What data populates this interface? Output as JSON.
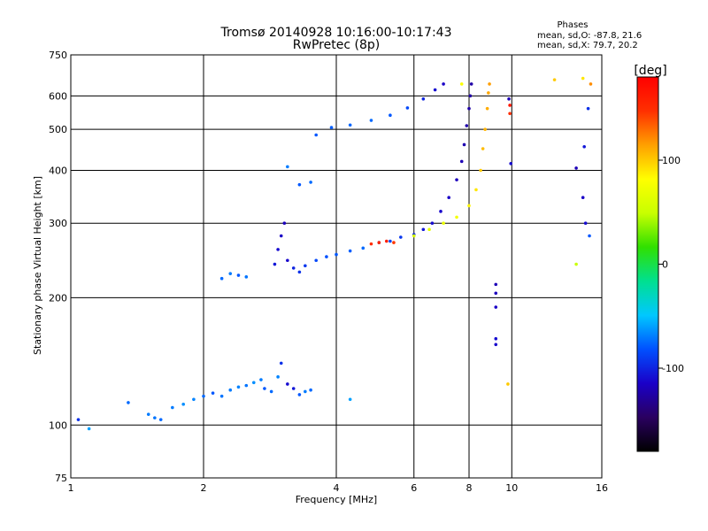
{
  "chart_data": {
    "type": "scatter",
    "title": "Tromsø 20140928 10:16:00-10:17:43",
    "subtitle": "RwPretec (8p)",
    "xlabel": "Frequency [MHz]",
    "ylabel": "Stationary phase Virtual Height [km]",
    "x_scale": "log",
    "y_scale": "log",
    "xlim": [
      1,
      16
    ],
    "ylim": [
      75,
      750
    ],
    "x_ticks": [
      1,
      2,
      4,
      6,
      8,
      10,
      16
    ],
    "y_ticks": [
      75,
      100,
      200,
      300,
      400,
      500,
      600,
      750
    ],
    "grid": true,
    "legend": {
      "title": "Phases",
      "line1": "mean, sd,O: -87.8, 21.6",
      "line2": "mean, sd,X:  79.7, 20.2"
    },
    "colorbar": {
      "label": "[deg]",
      "range": [
        -180,
        180
      ],
      "ticks": [
        100,
        0,
        -100
      ],
      "colors": [
        "#000000",
        "#2a0060",
        "#1a00c8",
        "#0050ff",
        "#00c8ff",
        "#00e090",
        "#30e000",
        "#c8ff00",
        "#ffff00",
        "#ffa000",
        "#ff3000",
        "#ff0000"
      ]
    },
    "series": [
      {
        "values": [
          [
            1.04,
            103,
            -95
          ],
          [
            1.1,
            98,
            -60
          ],
          [
            1.35,
            113,
            -75
          ],
          [
            1.5,
            106,
            -70
          ],
          [
            1.55,
            104,
            -72
          ],
          [
            1.6,
            103,
            -75
          ],
          [
            1.7,
            110,
            -70
          ],
          [
            1.8,
            112,
            -65
          ],
          [
            1.9,
            115,
            -68
          ],
          [
            2.0,
            117,
            -75
          ],
          [
            2.1,
            119,
            -80
          ],
          [
            2.2,
            117,
            -72
          ],
          [
            2.3,
            121,
            -70
          ],
          [
            2.4,
            123,
            -68
          ],
          [
            2.5,
            124,
            -72
          ],
          [
            2.6,
            126,
            -65
          ],
          [
            2.7,
            128,
            -70
          ],
          [
            2.75,
            122,
            -80
          ],
          [
            2.85,
            120,
            -75
          ],
          [
            2.95,
            130,
            -68
          ],
          [
            3.0,
            140,
            -95
          ],
          [
            3.1,
            125,
            -110
          ],
          [
            3.2,
            122,
            -105
          ],
          [
            3.3,
            118,
            -80
          ],
          [
            3.4,
            120,
            -70
          ],
          [
            3.5,
            121,
            -75
          ],
          [
            4.3,
            115,
            -60
          ],
          [
            2.2,
            222,
            -75
          ],
          [
            2.3,
            228,
            -70
          ],
          [
            2.4,
            226,
            -80
          ],
          [
            2.5,
            224,
            -72
          ],
          [
            2.9,
            240,
            -105
          ],
          [
            2.95,
            260,
            -110
          ],
          [
            3.0,
            280,
            -115
          ],
          [
            3.05,
            300,
            -118
          ],
          [
            3.1,
            245,
            -112
          ],
          [
            3.2,
            235,
            -100
          ],
          [
            3.3,
            230,
            -95
          ],
          [
            3.4,
            238,
            -92
          ],
          [
            3.6,
            245,
            -85
          ],
          [
            3.8,
            250,
            -82
          ],
          [
            4.0,
            253,
            -80
          ],
          [
            4.3,
            258,
            -78
          ],
          [
            4.6,
            262,
            -75
          ],
          [
            5.0,
            270,
            -80
          ],
          [
            5.3,
            272,
            -85
          ],
          [
            5.6,
            278,
            -92
          ],
          [
            6.0,
            282,
            -98
          ],
          [
            6.3,
            290,
            -105
          ],
          [
            6.6,
            300,
            -110
          ],
          [
            6.9,
            320,
            -112
          ],
          [
            7.2,
            345,
            -115
          ],
          [
            7.5,
            380,
            -118
          ],
          [
            7.7,
            420,
            -120
          ],
          [
            7.8,
            460,
            -122
          ],
          [
            7.9,
            510,
            -124
          ],
          [
            8.0,
            560,
            -125
          ],
          [
            8.05,
            600,
            -126
          ],
          [
            8.1,
            640,
            -125
          ],
          [
            3.6,
            485,
            -80
          ],
          [
            3.9,
            505,
            -78
          ],
          [
            4.3,
            512,
            -76
          ],
          [
            4.8,
            525,
            -75
          ],
          [
            5.3,
            540,
            -80
          ],
          [
            5.8,
            562,
            -85
          ],
          [
            6.3,
            590,
            -100
          ],
          [
            6.7,
            620,
            -110
          ],
          [
            7.0,
            640,
            -115
          ],
          [
            3.3,
            370,
            -80
          ],
          [
            3.5,
            375,
            -75
          ],
          [
            3.1,
            408,
            -70
          ]
        ]
      },
      {
        "values": [
          [
            4.8,
            268,
            150
          ],
          [
            5.0,
            270,
            155
          ],
          [
            5.2,
            272,
            160
          ],
          [
            5.4,
            270,
            145
          ],
          [
            6.0,
            280,
            60
          ],
          [
            6.5,
            290,
            65
          ],
          [
            7.0,
            300,
            70
          ],
          [
            7.5,
            310,
            75
          ],
          [
            8.0,
            330,
            85
          ],
          [
            8.3,
            360,
            90
          ],
          [
            8.5,
            400,
            100
          ],
          [
            8.6,
            450,
            105
          ],
          [
            8.7,
            500,
            108
          ],
          [
            8.8,
            560,
            110
          ],
          [
            8.85,
            610,
            112
          ],
          [
            8.9,
            640,
            115
          ],
          [
            7.7,
            640,
            80
          ],
          [
            12.5,
            655,
            100
          ],
          [
            14.5,
            660,
            90
          ]
        ]
      },
      {
        "values": [
          [
            9.2,
            215,
            -120
          ],
          [
            9.2,
            205,
            -118
          ],
          [
            9.2,
            190,
            -115
          ],
          [
            9.2,
            160,
            -110
          ],
          [
            9.2,
            155,
            -112
          ],
          [
            9.8,
            125,
            100
          ],
          [
            9.9,
            570,
            165
          ],
          [
            9.9,
            545,
            150
          ],
          [
            9.95,
            415,
            -110
          ],
          [
            9.85,
            590,
            -120
          ],
          [
            14.0,
            405,
            -120
          ],
          [
            14.5,
            345,
            -115
          ],
          [
            14.7,
            300,
            -110
          ],
          [
            14.6,
            455,
            -105
          ],
          [
            14.9,
            560,
            -95
          ],
          [
            14.0,
            240,
            50
          ],
          [
            15.0,
            280,
            -80
          ],
          [
            15.1,
            640,
            120
          ]
        ]
      }
    ]
  }
}
